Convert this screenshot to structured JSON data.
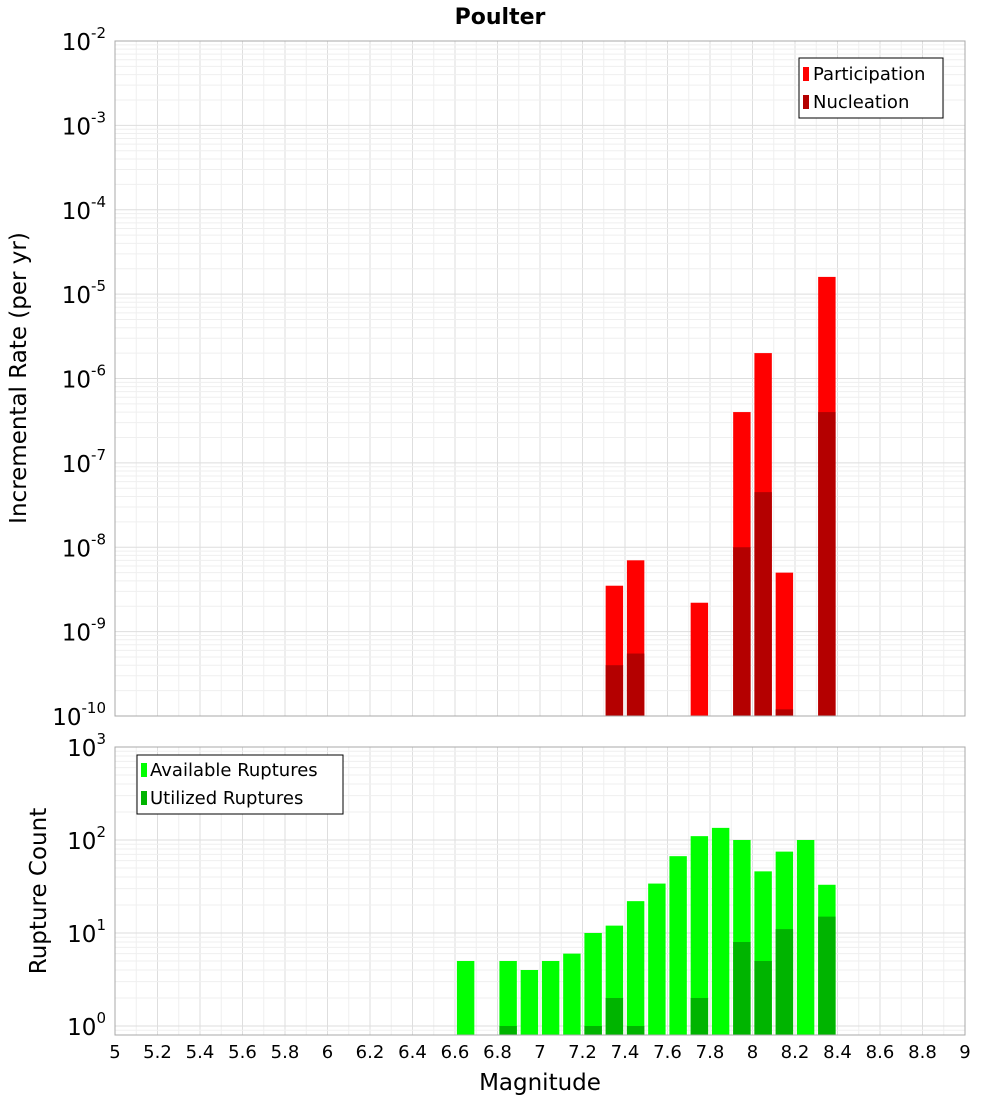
{
  "title": "Poulter",
  "colors": {
    "participation": "#ff0000",
    "nucleation": "#b40000",
    "available": "#00ff00",
    "utilized": "#00b400",
    "grid": "#e6e6e6",
    "frame": "#a8a8a8"
  },
  "chart_data": [
    {
      "type": "bar",
      "title": "Poulter",
      "ylabel": "Incremental Rate (per yr)",
      "yscale": "log",
      "ylim": [
        1e-10,
        0.01
      ],
      "y_tick_exponents": [
        -10,
        -9,
        -8,
        -7,
        -6,
        -5,
        -4,
        -3,
        -2
      ],
      "grid": true,
      "legend_position": "top-right",
      "x": [
        7.35,
        7.45,
        7.75,
        7.95,
        8.05,
        8.15,
        8.35
      ],
      "series": [
        {
          "name": "Participation",
          "values": [
            3.5e-09,
            7e-09,
            2.2e-09,
            4e-07,
            2e-06,
            5e-09,
            1.6e-05
          ]
        },
        {
          "name": "Nucleation",
          "values": [
            4e-10,
            5.5e-10,
            null,
            1e-08,
            4.5e-08,
            1.2e-10,
            4e-07
          ]
        }
      ]
    },
    {
      "type": "bar",
      "xlabel": "Magnitude",
      "ylabel": "Rupture Count",
      "yscale": "log",
      "ylim": [
        0.8,
        1000
      ],
      "y_tick_exponents": [
        0,
        1,
        2,
        3
      ],
      "xlim": [
        5,
        9
      ],
      "x_ticks": [
        "5",
        "5.2",
        "5.4",
        "5.6",
        "5.8",
        "6",
        "6.2",
        "6.4",
        "6.6",
        "6.8",
        "7",
        "7.2",
        "7.4",
        "7.6",
        "7.8",
        "8",
        "8.2",
        "8.4",
        "8.6",
        "8.8",
        "9"
      ],
      "grid": true,
      "legend_position": "top-left",
      "x": [
        6.65,
        6.85,
        6.95,
        7.05,
        7.15,
        7.25,
        7.35,
        7.45,
        7.55,
        7.65,
        7.75,
        7.85,
        7.95,
        8.05,
        8.15,
        8.25,
        8.35
      ],
      "series": [
        {
          "name": "Available Ruptures",
          "values": [
            5,
            5,
            4,
            5,
            6,
            10,
            12,
            22,
            34,
            67,
            110,
            135,
            100,
            46,
            75,
            100,
            33
          ]
        },
        {
          "name": "Utilized Ruptures",
          "values": [
            null,
            1,
            null,
            null,
            null,
            1,
            2,
            1,
            null,
            null,
            2,
            null,
            8,
            5,
            11,
            null,
            15
          ]
        }
      ]
    }
  ]
}
